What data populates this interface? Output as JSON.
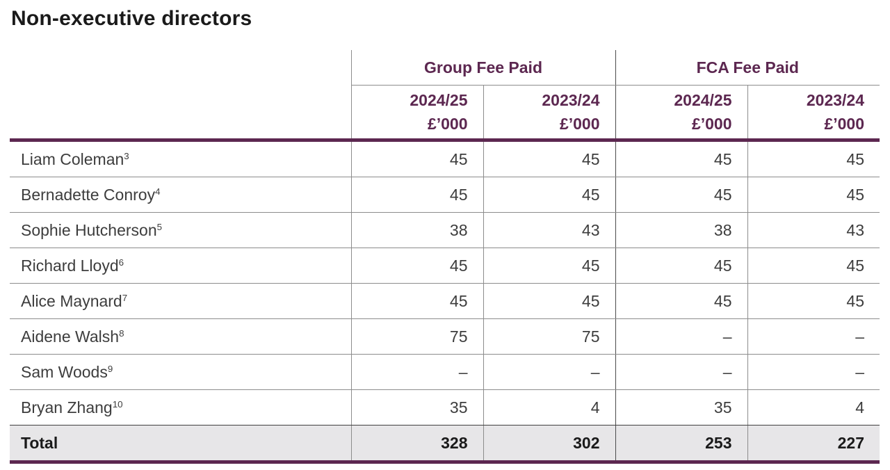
{
  "page": {
    "title": "Non-executive directors"
  },
  "table": {
    "col_groups": [
      {
        "label": "Group Fee Paid"
      },
      {
        "label": "FCA Fee Paid"
      }
    ],
    "columns": [
      {
        "year": "2024/25",
        "unit": "£’000"
      },
      {
        "year": "2023/24",
        "unit": "£’000"
      },
      {
        "year": "2024/25",
        "unit": "£’000"
      },
      {
        "year": "2023/24",
        "unit": "£’000"
      }
    ],
    "rows": [
      {
        "name": "Liam Coleman",
        "sup": "3",
        "values": [
          "45",
          "45",
          "45",
          "45"
        ]
      },
      {
        "name": "Bernadette Conroy",
        "sup": "4",
        "values": [
          "45",
          "45",
          "45",
          "45"
        ]
      },
      {
        "name": "Sophie Hutcherson",
        "sup": "5",
        "values": [
          "38",
          "43",
          "38",
          "43"
        ]
      },
      {
        "name": "Richard Lloyd",
        "sup": "6",
        "values": [
          "45",
          "45",
          "45",
          "45"
        ]
      },
      {
        "name": "Alice Maynard",
        "sup": "7",
        "values": [
          "45",
          "45",
          "45",
          "45"
        ]
      },
      {
        "name": "Aidene Walsh",
        "sup": "8",
        "values": [
          "75",
          "75",
          "–",
          "–"
        ]
      },
      {
        "name": "Sam Woods",
        "sup": "9",
        "values": [
          "–",
          "–",
          "–",
          "–"
        ]
      },
      {
        "name": "Bryan Zhang",
        "sup": "10",
        "values": [
          "35",
          "4",
          "35",
          "4"
        ]
      }
    ],
    "total": {
      "label": "Total",
      "values": [
        "328",
        "302",
        "253",
        "227"
      ]
    }
  },
  "colors": {
    "accent_plum": "#5c2750",
    "grid_gray": "#8c8c8c",
    "total_row_bg": "#e7e6e8"
  }
}
